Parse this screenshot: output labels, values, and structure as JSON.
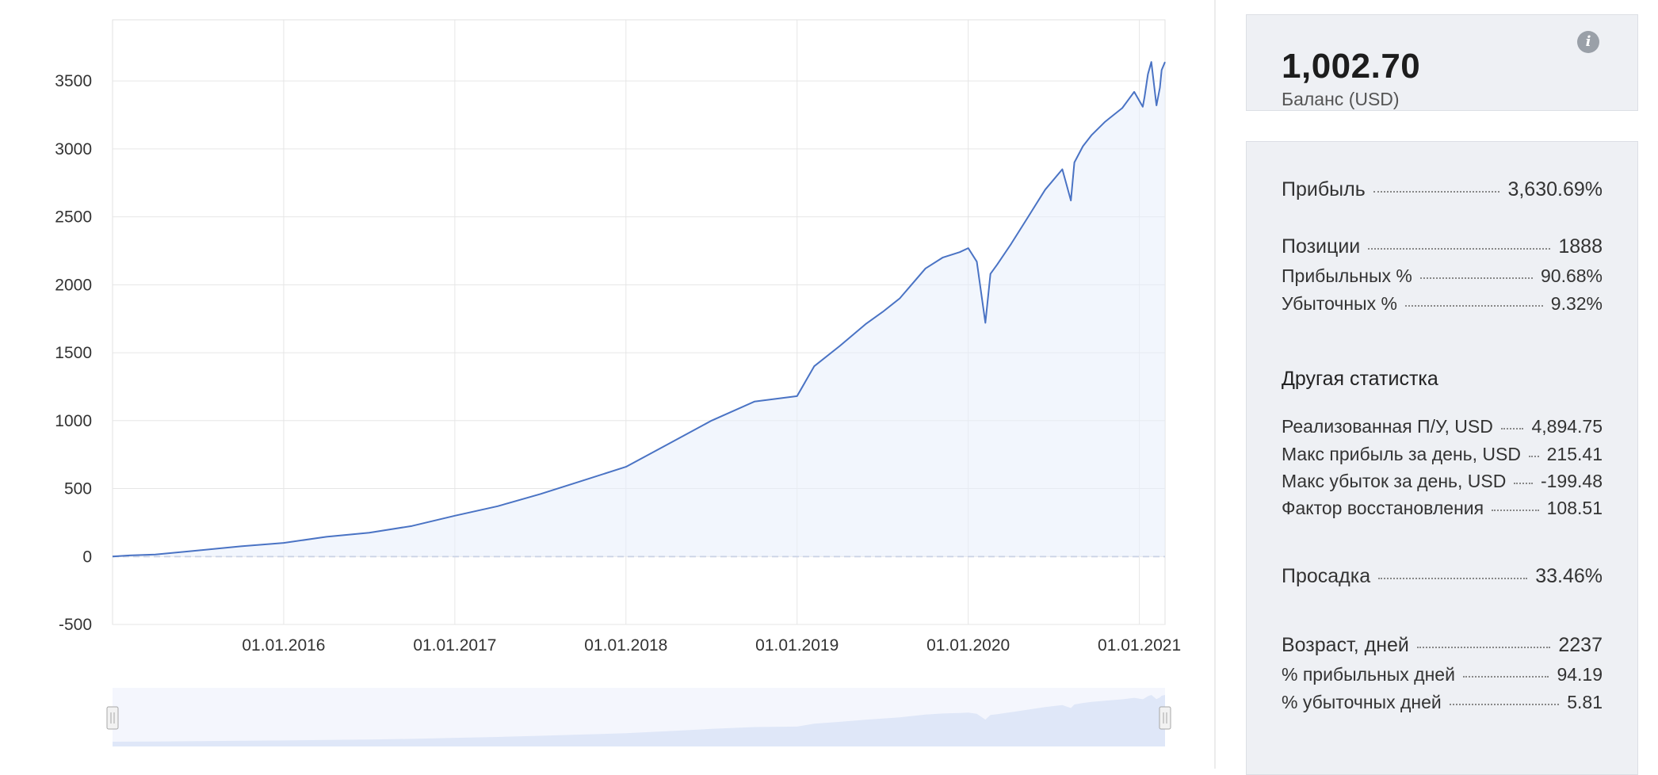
{
  "chart_data": {
    "type": "area",
    "y_ticks": [
      "3500",
      "3000",
      "2500",
      "2000",
      "1500",
      "1000",
      "500",
      "0",
      "-500"
    ],
    "y_tick_values": [
      3500,
      3000,
      2500,
      2000,
      1500,
      1000,
      500,
      0,
      -500
    ],
    "ylim": [
      -500,
      3950
    ],
    "x_ticks": [
      "01.01.2016",
      "01.01.2017",
      "01.01.2018",
      "01.01.2019",
      "01.01.2020",
      "01.01.2021"
    ],
    "x_tick_values": [
      2016.0,
      2017.0,
      2018.0,
      2019.0,
      2020.0,
      2021.0
    ],
    "xlim": [
      2015.0,
      2021.15
    ],
    "grid": true,
    "title": "",
    "xlabel": "",
    "ylabel": "",
    "series": [
      {
        "x": [
          2015.0,
          2015.1,
          2015.25,
          2015.5,
          2015.75,
          2016.0,
          2016.25,
          2016.5,
          2016.75,
          2017.0,
          2017.25,
          2017.5,
          2017.75,
          2018.0,
          2018.25,
          2018.5,
          2018.75,
          2019.0,
          2019.1,
          2019.25,
          2019.4,
          2019.5,
          2019.6,
          2019.75,
          2019.85,
          2019.95,
          2020.0,
          2020.05,
          2020.1,
          2020.13,
          2020.17,
          2020.25,
          2020.35,
          2020.4,
          2020.45,
          2020.55,
          2020.6,
          2020.62,
          2020.67,
          2020.72,
          2020.8,
          2020.9,
          2020.97,
          2021.02,
          2021.03,
          2021.05,
          2021.07,
          2021.1,
          2021.12,
          2021.13,
          2021.15
        ],
        "y": [
          0,
          8,
          15,
          45,
          75,
          100,
          145,
          175,
          225,
          300,
          370,
          460,
          560,
          660,
          830,
          1000,
          1140,
          1180,
          1400,
          1550,
          1710,
          1800,
          1900,
          2120,
          2200,
          2240,
          2270,
          2170,
          1720,
          2080,
          2150,
          2300,
          2500,
          2600,
          2700,
          2850,
          2620,
          2900,
          3020,
          3100,
          3200,
          3300,
          3420,
          3310,
          3380,
          3550,
          3640,
          3320,
          3450,
          3580,
          3640
        ]
      }
    ],
    "line_color": "#4a73c4",
    "fill_color": "#e8eefb",
    "navigator_fill": "#dfe7f8"
  },
  "summary": {
    "balance_value": "1,002.70",
    "balance_label": "Баланс (USD)",
    "info_icon": "i"
  },
  "stats": {
    "profit_label": "Прибыль",
    "profit_value": "3,630.69%",
    "positions_label": "Позиции",
    "positions_value": "1888",
    "winning_label": "Прибыльных %",
    "winning_value": "90.68%",
    "losing_label": "Убыточных %",
    "losing_value": "9.32%",
    "other_title": "Другая статистка",
    "realized_label": "Реализованная П/У, USD",
    "realized_value": "4,894.75",
    "maxprofit_label": "Макс прибыль за день, USD",
    "maxprofit_value": "215.41",
    "maxloss_label": "Макс убыток за день, USD",
    "maxloss_value": "-199.48",
    "recovery_label": "Фактор восстановления",
    "recovery_value": "108.51",
    "drawdown_label": "Просадка",
    "drawdown_value": "33.46%",
    "age_label": "Возраст, дней",
    "age_value": "2237",
    "profdays_label": "% прибыльных дней",
    "profdays_value": "94.19",
    "lossdays_label": "% убыточных дней",
    "lossdays_value": "5.81"
  }
}
